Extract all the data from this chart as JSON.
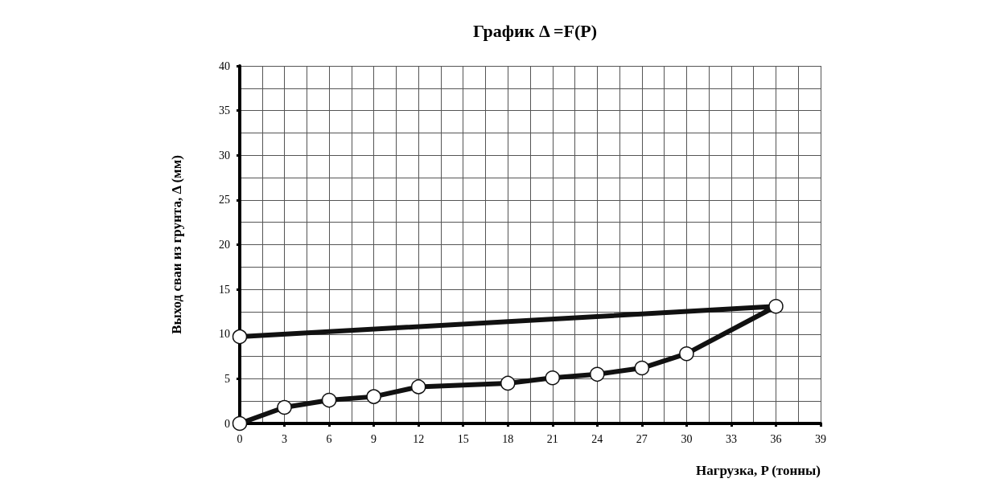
{
  "chart_data": {
    "type": "line",
    "title": "График Δ =F(P)",
    "xlabel": "Нагрузка, P (тонны)",
    "ylabel": "Выход сваи из грунта, Δ (мм)",
    "x": [
      0,
      3,
      6,
      9,
      12,
      18,
      21,
      24,
      27,
      30,
      36,
      0
    ],
    "series": [
      {
        "color": "#111111",
        "values": [
          0,
          1.8,
          2.6,
          3.0,
          4.1,
          4.5,
          5.1,
          5.5,
          6.2,
          7.8,
          13.1,
          9.7
        ]
      }
    ],
    "xlim": [
      0,
      39
    ],
    "xticks": [
      0,
      3,
      6,
      9,
      12,
      15,
      18,
      21,
      24,
      27,
      30,
      33,
      36,
      39
    ],
    "ylim": [
      0,
      40
    ],
    "yticks": [
      0,
      5,
      10,
      15,
      20,
      25,
      30,
      35,
      40
    ],
    "grid": true,
    "marker": "circle",
    "line_style": "solid"
  }
}
